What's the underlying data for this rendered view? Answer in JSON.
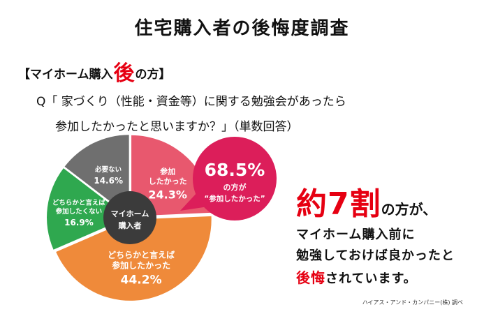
{
  "title": "住宅購入者の後悔度調査",
  "subtitle": {
    "prefix": "【マイホーム購入",
    "accent": "後",
    "suffix": "の方】"
  },
  "question": {
    "line1": "Q「 家づくり（性能・資金等）に関する勉強会があったら",
    "line2": "参加したかったと思いますか？」（単数回答）"
  },
  "chart_data": {
    "type": "pie",
    "title": "",
    "center_label": [
      "マイホーム",
      "購入者"
    ],
    "slices": [
      {
        "label_lines": [
          "参加",
          "したかった"
        ],
        "value": 24.3,
        "value_text": "24.3%",
        "color": "#e8586e"
      },
      {
        "label_lines": [
          "どちらかと言えば",
          "参加したかった"
        ],
        "value": 44.2,
        "value_text": "44.2%",
        "color": "#ef8a3a"
      },
      {
        "label_lines": [
          "どちらかと言えば",
          "参加したくない"
        ],
        "value": 16.9,
        "value_text": "16.9%",
        "color": "#2fa84f"
      },
      {
        "label_lines": [
          "必要ない"
        ],
        "value": 14.6,
        "value_text": "14.6%",
        "color": "#6f6f6f"
      }
    ],
    "callout": {
      "value_text": "68.5%",
      "line1": "の方が",
      "line2": "“参加したかった”",
      "color": "#dc1e5a"
    }
  },
  "headline": {
    "big": "約7割",
    "small": "の方が、"
  },
  "body": {
    "line1": "マイホーム購入前に",
    "line2": "勉強しておけば良かったと",
    "line3_red": "後悔",
    "line3_rest": "されています。"
  },
  "source": "ハイアス・アンド・カンパニー(株) 調べ"
}
